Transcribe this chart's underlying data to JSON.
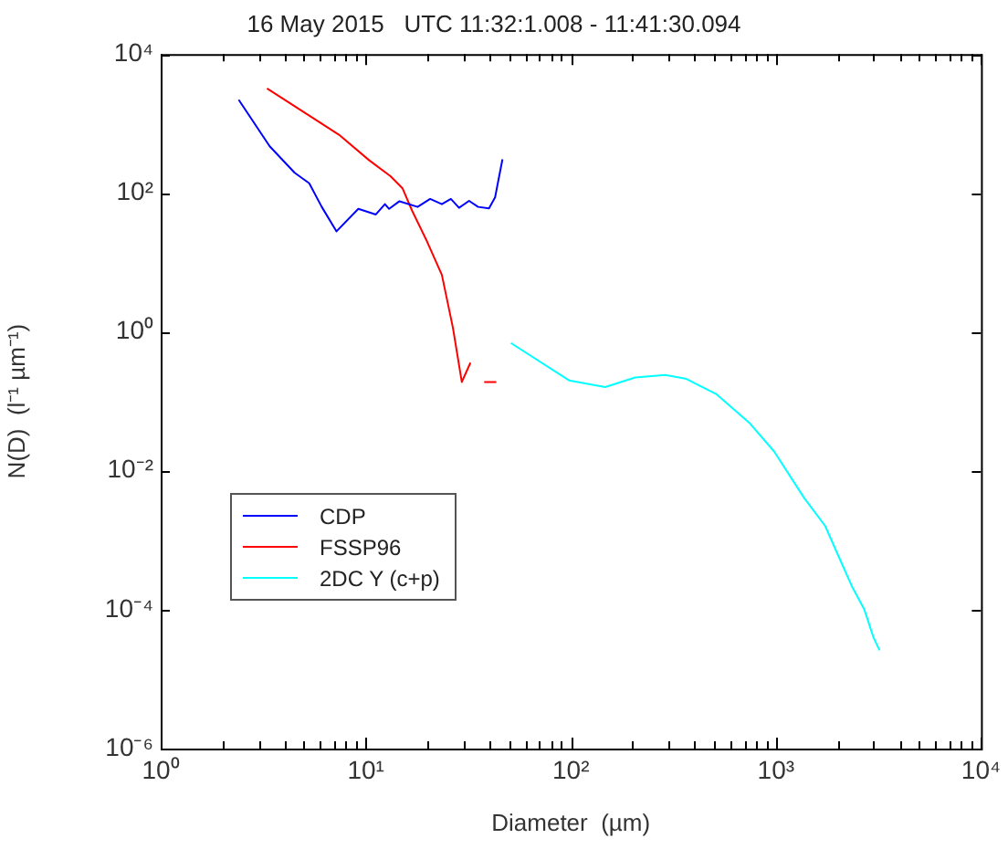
{
  "chart_data": {
    "type": "line",
    "title": "16 May 2015   UTC 11:32:1.008 - 11:41:30.094",
    "xlabel": "Diameter  (µm)",
    "ylabel": "N(D)  (l⁻¹ µm⁻¹)",
    "log": "xy",
    "grid": false,
    "legend": "bottom left",
    "marker": "none",
    "line_style": "solid",
    "xlim": [
      1,
      10000
    ],
    "ylim": [
      1e-06,
      10000
    ],
    "xticks": [
      {
        "value": 1,
        "label": "10⁰"
      },
      {
        "value": 2,
        "label": null
      },
      {
        "value": 3,
        "label": null
      },
      {
        "value": 4,
        "label": null
      },
      {
        "value": 5,
        "label": null
      },
      {
        "value": 6,
        "label": null
      },
      {
        "value": 7,
        "label": null
      },
      {
        "value": 8,
        "label": null
      },
      {
        "value": 9,
        "label": null
      },
      {
        "value": 10,
        "label": "10¹"
      },
      {
        "value": 20,
        "label": null
      },
      {
        "value": 30,
        "label": null
      },
      {
        "value": 40,
        "label": null
      },
      {
        "value": 50,
        "label": null
      },
      {
        "value": 60,
        "label": null
      },
      {
        "value": 70,
        "label": null
      },
      {
        "value": 80,
        "label": null
      },
      {
        "value": 90,
        "label": null
      },
      {
        "value": 100,
        "label": "10²"
      },
      {
        "value": 200,
        "label": null
      },
      {
        "value": 300,
        "label": null
      },
      {
        "value": 400,
        "label": null
      },
      {
        "value": 500,
        "label": null
      },
      {
        "value": 600,
        "label": null
      },
      {
        "value": 700,
        "label": null
      },
      {
        "value": 800,
        "label": null
      },
      {
        "value": 900,
        "label": null
      },
      {
        "value": 1000,
        "label": "10³"
      },
      {
        "value": 2000,
        "label": null
      },
      {
        "value": 3000,
        "label": null
      },
      {
        "value": 4000,
        "label": null
      },
      {
        "value": 5000,
        "label": null
      },
      {
        "value": 6000,
        "label": null
      },
      {
        "value": 7000,
        "label": null
      },
      {
        "value": 8000,
        "label": null
      },
      {
        "value": 9000,
        "label": null
      },
      {
        "value": 10000,
        "label": "10⁴"
      }
    ],
    "yticks": [
      {
        "value": 1e-06,
        "label": "10⁻⁶"
      },
      {
        "value": 0.0001,
        "label": "10⁻⁴"
      },
      {
        "value": 0.01,
        "label": "10⁻²"
      },
      {
        "value": 1,
        "label": "10⁰"
      },
      {
        "value": 100,
        "label": "10²"
      },
      {
        "value": 10000,
        "label": "10⁴"
      }
    ],
    "series": [
      {
        "name": "CDP",
        "color": "#0000ff",
        "x": [
          2.4,
          3.4,
          4.5,
          5.3,
          6.1,
          7.2,
          9.2,
          11.2,
          12.4,
          13,
          14.6,
          17.9,
          20.6,
          23.5,
          26,
          28.5,
          31.9,
          35.3,
          39.9,
          42.7,
          46.4
        ],
        "values": [
          2200,
          470,
          195,
          138,
          63,
          28,
          59,
          49,
          69,
          59,
          76,
          63,
          82,
          69,
          82,
          61,
          77,
          63,
          60,
          86,
          305
        ]
      },
      {
        "name": "FSSP96",
        "color": "#ff0000",
        "x": [
          3.3,
          5.3,
          7.4,
          10.4,
          13.2,
          15.1,
          16.8,
          19.9,
          23.5,
          26.6,
          29.4,
          32.4,
          35,
          37.8,
          43.3
        ],
        "values": [
          3200,
          1300,
          690,
          295,
          174,
          117,
          56,
          20,
          6.6,
          1.15,
          0.19,
          0.36,
          null,
          0.19,
          0.19
        ]
      },
      {
        "name": "2DC Y (c+p)",
        "color": "#00ffff",
        "x": [
          51,
          98,
          147,
          206,
          289,
          366,
          514,
          747,
          980,
          1370,
          1740,
          1990,
          2360,
          2700,
          2990,
          3200
        ],
        "values": [
          0.69,
          0.2,
          0.16,
          0.22,
          0.24,
          0.21,
          0.126,
          0.048,
          0.019,
          0.0041,
          0.0016,
          0.00065,
          0.00021,
          0.0001,
          4e-05,
          2.6e-05
        ]
      }
    ]
  }
}
